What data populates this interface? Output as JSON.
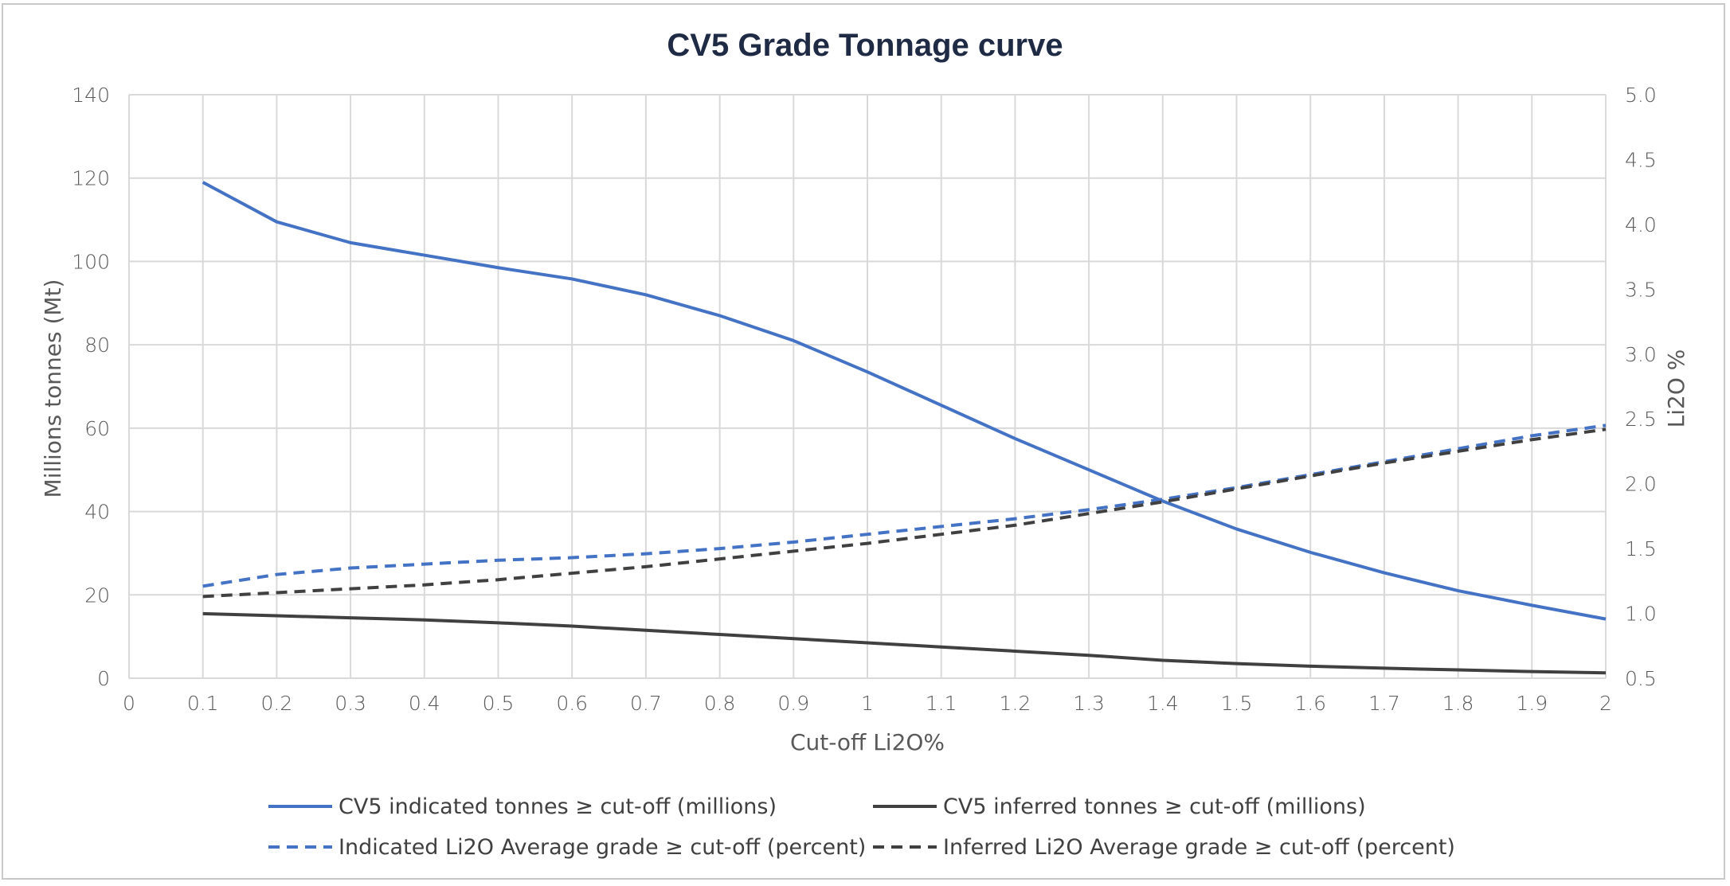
{
  "chart_data": {
    "type": "line",
    "title": "CV5 Grade Tonnage curve",
    "xlabel": "Cut-off Li2O%",
    "ylabel": "Millions tonnes (Mt)",
    "y2label": "Li2O %",
    "x": [
      0.1,
      0.2,
      0.3,
      0.4,
      0.5,
      0.6,
      0.7,
      0.8,
      0.9,
      1.0,
      1.1,
      1.2,
      1.3,
      1.4,
      1.5,
      1.6,
      1.7,
      1.8,
      1.9,
      2.0
    ],
    "x_tick_labels": [
      "0",
      "0.1",
      "0.2",
      "0.3",
      "0.4",
      "0.5",
      "0.6",
      "0.7",
      "0.8",
      "0.9",
      "1",
      "1.1",
      "1.2",
      "1.3",
      "1.4",
      "1.5",
      "1.6",
      "1.7",
      "1.8",
      "1.9",
      "2"
    ],
    "xlim": [
      0,
      2
    ],
    "ylim": [
      0,
      140
    ],
    "y_ticks": [
      "0",
      "20",
      "40",
      "60",
      "80",
      "100",
      "120",
      "140"
    ],
    "y2lim": [
      0.5,
      5.0
    ],
    "y2_ticks": [
      "0.5",
      "1.0",
      "1.5",
      "2.0",
      "2.5",
      "3.0",
      "3.5",
      "4.0",
      "4.5",
      "5.0"
    ],
    "grid": true,
    "legend_position": "bottom",
    "series": [
      {
        "name": "CV5 indicated tonnes ≥ cut-off (millions)",
        "axis": "left",
        "color": "#4472c4",
        "dash": "solid",
        "values": [
          119.0,
          109.5,
          104.5,
          101.5,
          98.5,
          95.8,
          92.0,
          87.0,
          81.0,
          73.5,
          65.5,
          57.5,
          50.0,
          42.5,
          35.8,
          30.2,
          25.3,
          21.0,
          17.5,
          14.2
        ]
      },
      {
        "name": "CV5 inferred tonnes ≥ cut-off (millions)",
        "axis": "left",
        "color": "#404040",
        "dash": "solid",
        "values": [
          15.5,
          15.0,
          14.5,
          14.0,
          13.3,
          12.5,
          11.5,
          10.5,
          9.5,
          8.5,
          7.5,
          6.5,
          5.5,
          4.3,
          3.5,
          2.9,
          2.4,
          2.0,
          1.6,
          1.3
        ]
      },
      {
        "name": "Indicated Li2O Average grade ≥ cut-off (percent)",
        "axis": "right",
        "color": "#4472c4",
        "dash": "dashed",
        "values": [
          1.21,
          1.3,
          1.35,
          1.38,
          1.41,
          1.43,
          1.46,
          1.5,
          1.55,
          1.61,
          1.67,
          1.73,
          1.8,
          1.88,
          1.97,
          2.07,
          2.17,
          2.27,
          2.37,
          2.45
        ]
      },
      {
        "name": "Inferred Li2O Average grade ≥ cut-off (percent)",
        "axis": "right",
        "color": "#404040",
        "dash": "dashed",
        "values": [
          1.13,
          1.16,
          1.19,
          1.22,
          1.26,
          1.31,
          1.36,
          1.42,
          1.48,
          1.54,
          1.61,
          1.68,
          1.77,
          1.86,
          1.96,
          2.06,
          2.16,
          2.25,
          2.34,
          2.42
        ]
      }
    ]
  }
}
